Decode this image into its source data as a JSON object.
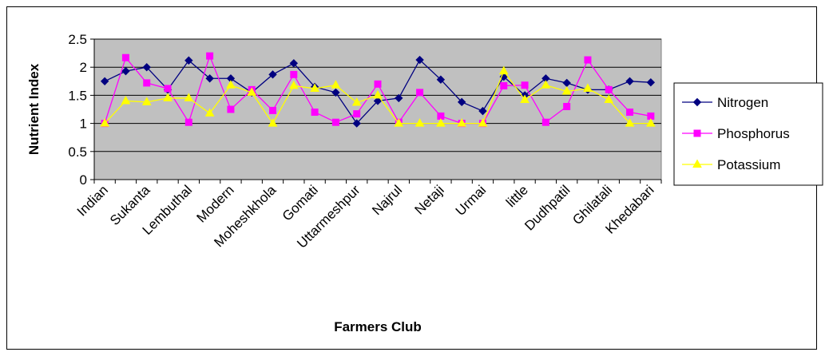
{
  "chart_data": {
    "type": "line",
    "title": "",
    "xlabel": "Farmers Club",
    "ylabel": "Nutrient Index",
    "ylim": [
      0,
      2.5
    ],
    "yticks": [
      "0",
      "0.5",
      "1",
      "1.5",
      "2",
      "2.5"
    ],
    "ytick_values": [
      0,
      0.5,
      1,
      1.5,
      2,
      2.5
    ],
    "grid": "horizontal",
    "legend_position": "right",
    "category_count": 27,
    "visible_category_labels": [
      "Indian",
      "Sukanta",
      "Lembuthal",
      "Modern",
      "Moheshkhola",
      "Gomati",
      "Uttarmeshpur",
      "Najrul",
      "Netaji",
      "Urmai",
      "little",
      "Dudhpatil",
      "Ghilatali",
      "Khedabari"
    ],
    "visible_label_indices": [
      0,
      2,
      4,
      6,
      8,
      10,
      12,
      14,
      16,
      18,
      20,
      22,
      24,
      26
    ],
    "series": [
      {
        "name": "Nitrogen",
        "color": "#000080",
        "marker": "diamond",
        "values": [
          1.75,
          1.93,
          2.0,
          1.6,
          2.12,
          1.8,
          1.8,
          1.55,
          1.87,
          2.07,
          1.65,
          1.55,
          1.0,
          1.4,
          1.45,
          2.13,
          1.78,
          1.38,
          1.22,
          1.83,
          1.5,
          1.8,
          1.72,
          1.6,
          1.6,
          1.75,
          1.73
        ]
      },
      {
        "name": "Phosphorus",
        "color": "#ff00ff",
        "marker": "square",
        "values": [
          1.0,
          2.17,
          1.72,
          1.62,
          1.02,
          2.2,
          1.25,
          1.6,
          1.23,
          1.87,
          1.2,
          1.02,
          1.17,
          1.7,
          1.02,
          1.55,
          1.13,
          1.0,
          1.0,
          1.67,
          1.68,
          1.02,
          1.3,
          2.13,
          1.6,
          1.2,
          1.13
        ]
      },
      {
        "name": "Potassium",
        "color": "#ffff00",
        "marker": "triangle",
        "values": [
          1.0,
          1.4,
          1.38,
          1.45,
          1.45,
          1.18,
          1.68,
          1.55,
          1.0,
          1.67,
          1.62,
          1.68,
          1.37,
          1.5,
          1.0,
          1.0,
          1.0,
          1.0,
          1.0,
          1.93,
          1.42,
          1.68,
          1.57,
          1.62,
          1.42,
          1.0,
          1.0
        ]
      }
    ]
  }
}
